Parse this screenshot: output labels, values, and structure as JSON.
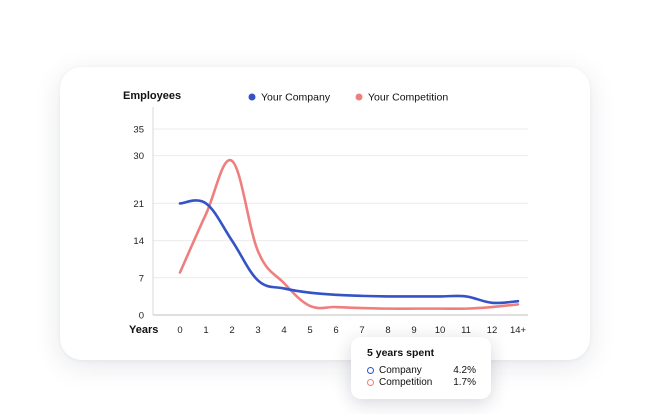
{
  "chart_data": {
    "type": "line",
    "ylabel": "Employees",
    "xlabel": "Years",
    "categories": [
      "0",
      "1",
      "2",
      "3",
      "4",
      "5",
      "6",
      "7",
      "8",
      "9",
      "10",
      "11",
      "12",
      "14+"
    ],
    "yticks": [
      0,
      7,
      14,
      21,
      30,
      35
    ],
    "ylim": [
      0,
      35
    ],
    "grid": true,
    "legend_position": "top",
    "series": [
      {
        "name": "Your Company",
        "color": "#3552c7",
        "values": [
          21,
          21,
          14,
          6.5,
          5,
          4.2,
          3.8,
          3.6,
          3.5,
          3.5,
          3.5,
          3.5,
          2.3,
          2.6
        ]
      },
      {
        "name": "Your Competition",
        "color": "#ef7f7f",
        "values": [
          8,
          19,
          29,
          12,
          6,
          1.7,
          1.5,
          1.3,
          1.2,
          1.2,
          1.2,
          1.2,
          1.5,
          2
        ]
      }
    ],
    "tooltip": {
      "title": "5 years spent",
      "rows": [
        {
          "label": "Company",
          "value": "4.2%",
          "color": "#3552c7"
        },
        {
          "label": "Competition",
          "value": "1.7%",
          "color": "#ef7f7f"
        }
      ]
    }
  }
}
